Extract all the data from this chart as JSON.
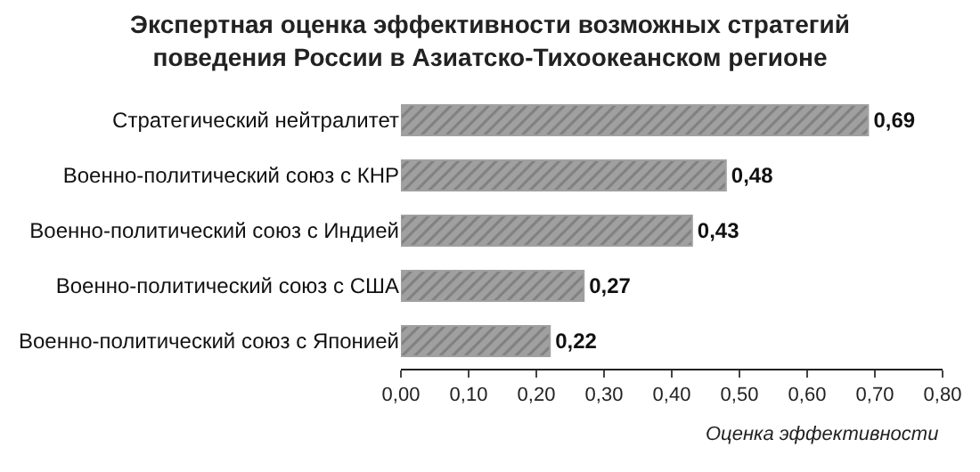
{
  "chart_data": {
    "type": "bar",
    "orientation": "horizontal",
    "title": "Экспертная оценка эффективности возможных стратегий\nповедения России в Азиатско-Тихоокеанском регионе",
    "xlabel": "Оценка эффективности",
    "categories": [
      "Стратегический нейтралитет",
      "Военно-политический союз с КНР",
      "Военно-политический союз с Индией",
      "Военно-политический союз с США",
      "Военно-политический союз с Японией"
    ],
    "values": [
      0.69,
      0.48,
      0.43,
      0.27,
      0.22
    ],
    "value_labels": [
      "0,69",
      "0,48",
      "0,43",
      "0,27",
      "0,22"
    ],
    "color": "#a0a0a0",
    "xlim": [
      0,
      0.8
    ],
    "xticks": [
      {
        "value": 0,
        "label": "0,00"
      },
      {
        "value": 0.1,
        "label": "0,10"
      },
      {
        "value": 0.2,
        "label": "0,20"
      },
      {
        "value": 0.3,
        "label": "0,30"
      },
      {
        "value": 0.4,
        "label": "0,40"
      },
      {
        "value": 0.5,
        "label": "0,50"
      },
      {
        "value": 0.6,
        "label": "0,60"
      },
      {
        "value": 0.7,
        "label": "0,70"
      },
      {
        "value": 0.8,
        "label": "0,80"
      }
    ]
  }
}
